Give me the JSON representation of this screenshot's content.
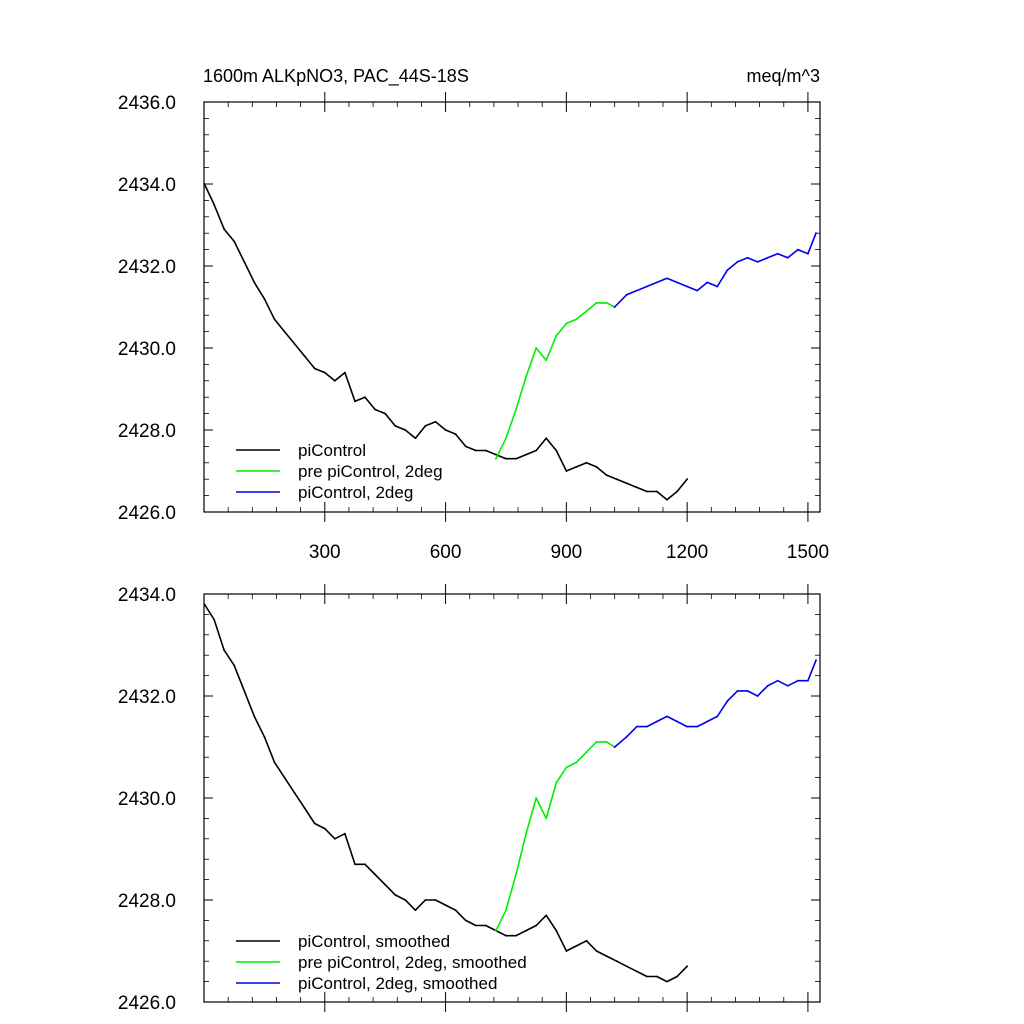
{
  "figure": {
    "title_left": "1600m ALKpNO3, PAC_44S-18S",
    "title_right": "meq/m^3"
  },
  "colors": {
    "piControl": "#000000",
    "pre_piControl_2deg": "#00ee00",
    "piControl_2deg": "#0000ee",
    "axes": "#000000",
    "background": "#ffffff"
  },
  "chart_data": [
    {
      "type": "line",
      "xlim": [
        0,
        1530
      ],
      "ylim": [
        2426.0,
        2436.0
      ],
      "x_ticks": [
        300,
        600,
        900,
        1200,
        1500
      ],
      "x_tick_labels": [
        "300",
        "600",
        "900",
        "1200",
        "1500"
      ],
      "y_ticks": [
        2426.0,
        2428.0,
        2430.0,
        2432.0,
        2434.0,
        2436.0
      ],
      "y_tick_labels": [
        "2426.0",
        "2428.0",
        "2430.0",
        "2432.0",
        "2434.0",
        "2436.0"
      ],
      "grid": false,
      "legend_position": "bottom-left",
      "series": [
        {
          "name": "piControl",
          "color": "#000000",
          "x": [
            1,
            25,
            50,
            75,
            100,
            125,
            150,
            175,
            200,
            225,
            250,
            275,
            300,
            325,
            350,
            375,
            400,
            425,
            450,
            475,
            500,
            525,
            550,
            575,
            600,
            625,
            650,
            675,
            700,
            725,
            750,
            775,
            800,
            825,
            850,
            875,
            900,
            925,
            950,
            975,
            1000,
            1025,
            1050,
            1075,
            1100,
            1125,
            1150,
            1175,
            1200
          ],
          "y": [
            2434.0,
            2433.5,
            2432.9,
            2432.6,
            2432.1,
            2431.6,
            2431.2,
            2430.7,
            2430.4,
            2430.1,
            2429.8,
            2429.5,
            2429.4,
            2429.2,
            2429.4,
            2428.7,
            2428.8,
            2428.5,
            2428.4,
            2428.1,
            2428.0,
            2427.8,
            2428.1,
            2428.2,
            2428.0,
            2427.9,
            2427.6,
            2427.5,
            2427.5,
            2427.4,
            2427.3,
            2427.3,
            2427.4,
            2427.5,
            2427.8,
            2427.5,
            2427.0,
            2427.1,
            2427.2,
            2427.1,
            2426.9,
            2426.8,
            2426.7,
            2426.6,
            2426.5,
            2426.5,
            2426.3,
            2426.5,
            2426.8
          ]
        },
        {
          "name": "pre piControl, 2deg",
          "color": "#00ee00",
          "x": [
            725,
            750,
            775,
            800,
            825,
            850,
            875,
            900,
            925,
            950,
            975,
            1000,
            1020
          ],
          "y": [
            2427.3,
            2427.8,
            2428.5,
            2429.3,
            2430.0,
            2429.7,
            2430.3,
            2430.6,
            2430.7,
            2430.9,
            2431.1,
            2431.1,
            2431.0
          ]
        },
        {
          "name": "piControl, 2deg",
          "color": "#0000ee",
          "x": [
            1020,
            1050,
            1075,
            1100,
            1125,
            1150,
            1175,
            1200,
            1225,
            1250,
            1275,
            1300,
            1325,
            1350,
            1375,
            1400,
            1425,
            1450,
            1475,
            1500,
            1520
          ],
          "y": [
            2431.0,
            2431.3,
            2431.4,
            2431.5,
            2431.6,
            2431.7,
            2431.6,
            2431.5,
            2431.4,
            2431.6,
            2431.5,
            2431.9,
            2432.1,
            2432.2,
            2432.1,
            2432.2,
            2432.3,
            2432.2,
            2432.4,
            2432.3,
            2432.8
          ]
        }
      ]
    },
    {
      "type": "line",
      "xlim": [
        0,
        1530
      ],
      "ylim": [
        2426.0,
        2434.0
      ],
      "x_ticks": [
        300,
        600,
        900,
        1200,
        1500
      ],
      "x_tick_labels": [],
      "y_ticks": [
        2426.0,
        2428.0,
        2430.0,
        2432.0,
        2434.0
      ],
      "y_tick_labels": [
        "2426.0",
        "2428.0",
        "2430.0",
        "2432.0",
        "2434.0"
      ],
      "grid": false,
      "legend_position": "bottom-left",
      "series": [
        {
          "name": "piControl, smoothed",
          "color": "#000000",
          "x": [
            1,
            25,
            50,
            75,
            100,
            125,
            150,
            175,
            200,
            225,
            250,
            275,
            300,
            325,
            350,
            375,
            400,
            425,
            450,
            475,
            500,
            525,
            550,
            575,
            600,
            625,
            650,
            675,
            700,
            725,
            750,
            775,
            800,
            825,
            850,
            875,
            900,
            925,
            950,
            975,
            1000,
            1025,
            1050,
            1075,
            1100,
            1125,
            1150,
            1175,
            1200
          ],
          "y": [
            2433.8,
            2433.5,
            2432.9,
            2432.6,
            2432.1,
            2431.6,
            2431.2,
            2430.7,
            2430.4,
            2430.1,
            2429.8,
            2429.5,
            2429.4,
            2429.2,
            2429.3,
            2428.7,
            2428.7,
            2428.5,
            2428.3,
            2428.1,
            2428.0,
            2427.8,
            2428.0,
            2428.0,
            2427.9,
            2427.8,
            2427.6,
            2427.5,
            2427.5,
            2427.4,
            2427.3,
            2427.3,
            2427.4,
            2427.5,
            2427.7,
            2427.4,
            2427.0,
            2427.1,
            2427.2,
            2427.0,
            2426.9,
            2426.8,
            2426.7,
            2426.6,
            2426.5,
            2426.5,
            2426.4,
            2426.5,
            2426.7
          ]
        },
        {
          "name": "pre piControl, 2deg, smoothed",
          "color": "#00ee00",
          "x": [
            725,
            750,
            775,
            800,
            825,
            850,
            875,
            900,
            925,
            950,
            975,
            1000,
            1020
          ],
          "y": [
            2427.4,
            2427.8,
            2428.5,
            2429.3,
            2430.0,
            2429.6,
            2430.3,
            2430.6,
            2430.7,
            2430.9,
            2431.1,
            2431.1,
            2431.0
          ]
        },
        {
          "name": "piControl, 2deg, smoothed",
          "color": "#0000ee",
          "x": [
            1020,
            1050,
            1075,
            1100,
            1125,
            1150,
            1175,
            1200,
            1225,
            1250,
            1275,
            1300,
            1325,
            1350,
            1375,
            1400,
            1425,
            1450,
            1475,
            1500,
            1520
          ],
          "y": [
            2431.0,
            2431.2,
            2431.4,
            2431.4,
            2431.5,
            2431.6,
            2431.5,
            2431.4,
            2431.4,
            2431.5,
            2431.6,
            2431.9,
            2432.1,
            2432.1,
            2432.0,
            2432.2,
            2432.3,
            2432.2,
            2432.3,
            2432.3,
            2432.7
          ]
        }
      ]
    }
  ]
}
